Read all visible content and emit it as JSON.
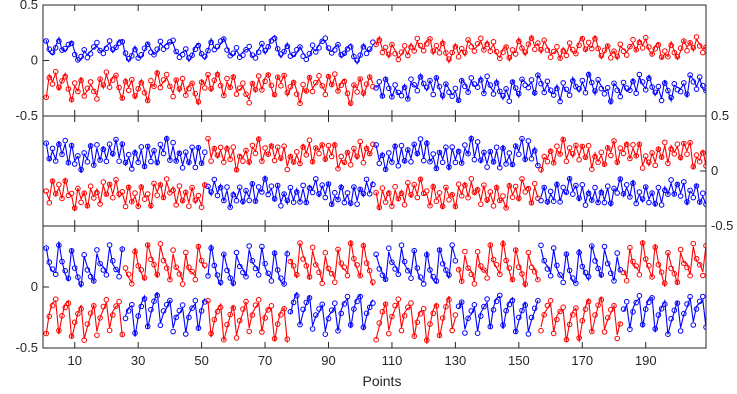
{
  "chart_data": {
    "type": "line",
    "xlabel": "Points",
    "xlim": [
      0,
      209
    ],
    "x_ticks": [
      10,
      30,
      50,
      70,
      90,
      110,
      130,
      150,
      170,
      190
    ],
    "colors": {
      "series_a": "#0000ff",
      "series_b": "#ff0000"
    },
    "panels": [
      {
        "ylim": [
          -0.5,
          0.5
        ],
        "y_axis_side": "left",
        "y_ticks": [
          0.5,
          0,
          -0.5
        ],
        "y_tick_labels": [
          "0.5",
          "0",
          "-0.5"
        ],
        "segment_breaks": [
          105
        ],
        "period": 8,
        "patterns": [
          [
            0.26,
            0.12,
            0.06,
            0.12,
            0.22,
            0.1,
            0.14,
            0.22
          ],
          [
            0.3,
            0.1,
            0.18,
            0.05,
            0.22,
            0.14,
            0.08,
            0.2
          ],
          [
            0.22,
            0.14,
            0.28,
            0.08,
            0.16,
            0.24,
            0.1,
            0.18
          ],
          [
            0.18,
            0.26,
            0.1,
            0.2,
            0.12,
            0.28,
            0.16,
            0.08
          ]
        ],
        "amp_top": 0.62,
        "amp_bottom": 0.82,
        "base_bottom": 0.1
      },
      {
        "ylim": [
          -0.5,
          0.5
        ],
        "y_axis_side": "right",
        "y_ticks": [
          0.5,
          0,
          -0.5
        ],
        "y_tick_labels": [
          "0.5",
          "0",
          "-0.5"
        ],
        "segment_breaks": [
          52,
          105,
          157
        ],
        "period": 8,
        "patterns": [
          [
            0.28,
            0.1,
            0.2,
            0.06,
            0.24,
            0.14,
            0.3,
            0.08
          ],
          [
            0.16,
            0.3,
            0.08,
            0.22,
            0.12,
            0.26,
            0.06,
            0.2
          ],
          [
            0.24,
            0.08,
            0.28,
            0.14,
            0.2,
            0.06,
            0.22,
            0.12
          ],
          [
            0.1,
            0.26,
            0.16,
            0.3,
            0.06,
            0.2,
            0.14,
            0.24
          ]
        ],
        "amp_top": 0.85,
        "amp_bottom": 0.85,
        "base_bottom": 0.06
      },
      {
        "ylim": [
          -0.5,
          0.5
        ],
        "y_axis_side": "left",
        "y_ticks": [
          0,
          -0.5
        ],
        "y_tick_labels": [
          "0",
          "-0.5"
        ],
        "segment_breaks": [
          26,
          52,
          78,
          105,
          131,
          157,
          183
        ],
        "period": 4,
        "patterns": [
          [
            0.38,
            0.22,
            0.14,
            0.08
          ],
          [
            0.42,
            0.26,
            0.16,
            0.1
          ],
          [
            0.36,
            0.2,
            0.12,
            0.06
          ],
          [
            0.4,
            0.24,
            0.18,
            0.08
          ]
        ],
        "amp_top": 0.8,
        "amp_bottom": 0.8,
        "base_bottom": 0.06
      }
    ]
  }
}
